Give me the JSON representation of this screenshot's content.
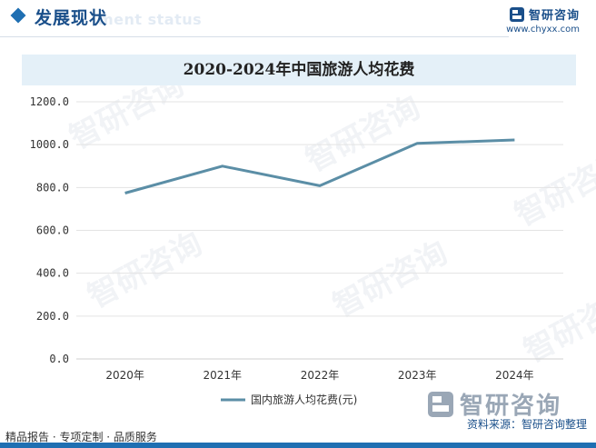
{
  "header": {
    "title": "发展现状",
    "subtitle": "ment status"
  },
  "brand": {
    "name": "智研咨询",
    "url": "www.chyxx.com"
  },
  "chart_data": {
    "type": "line",
    "title": "2020-2024年中国旅游人均花费",
    "categories": [
      "2020年",
      "2021年",
      "2022年",
      "2023年",
      "2024年"
    ],
    "series": [
      {
        "name": "国内旅游人均花费(元)",
        "values": [
          774,
          900,
          808,
          1006,
          1022
        ]
      }
    ],
    "ylim": [
      0,
      1200
    ],
    "yticks": [
      "0.0",
      "200.0",
      "400.0",
      "600.0",
      "800.0",
      "1000.0",
      "1200.0"
    ],
    "grid": true,
    "legend_position": "bottom",
    "line_color": "#5b8ea6"
  },
  "watermark": {
    "text": "智研咨询"
  },
  "footer": {
    "left": "精品报告 · 专项定制 · 品质服务",
    "source": "资料来源：智研咨询整理",
    "brand": "智研咨询"
  },
  "colors": {
    "accent": "#1f6fb2",
    "title_band": "#e4f0f8"
  }
}
